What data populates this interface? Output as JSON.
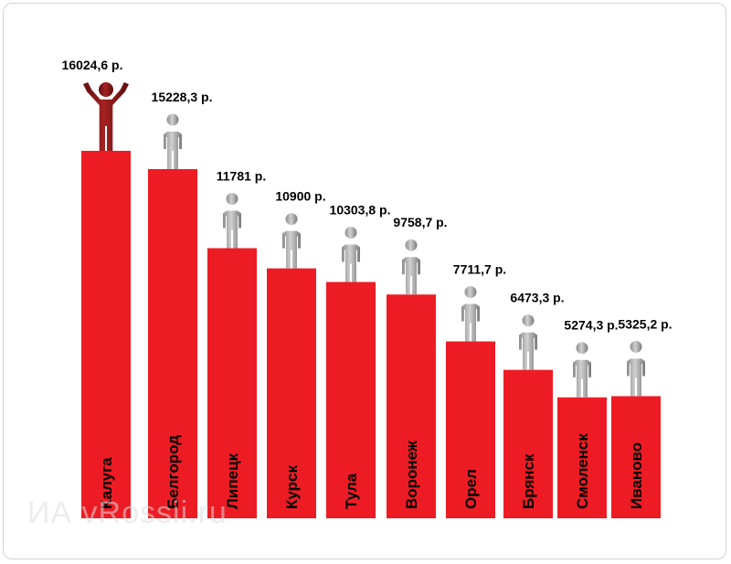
{
  "chart_data": {
    "type": "bar",
    "categories": [
      "Калуга",
      "Белгород",
      "Липецк",
      "Курск",
      "Тула",
      "Воронеж",
      "Орел",
      "Брянск",
      "Смоленск",
      "Иваново"
    ],
    "values": [
      16024.6,
      15228.3,
      11781,
      10900,
      10303.8,
      9758.7,
      7711.7,
      6473.3,
      5274.3,
      5325.2
    ],
    "value_labels": [
      "16024,6 р.",
      "15228,3 р.",
      "11781 р.",
      "10900 р.",
      "10303,8 р.",
      "9758,7 р.",
      "7711,7 р.",
      "6473,3 р.",
      "5274,3 р.",
      "5325,2 р."
    ],
    "title": "",
    "xlabel": "",
    "ylabel": "",
    "legend": "none",
    "grid": false
  },
  "watermark": "ИА vRossii.ru",
  "colors": {
    "bar": "#ed1c24",
    "winner_figure": "#8b1a1a",
    "figure": "#b3b3b3"
  },
  "icons": [
    "winner-figure-icon",
    "person-icon"
  ]
}
